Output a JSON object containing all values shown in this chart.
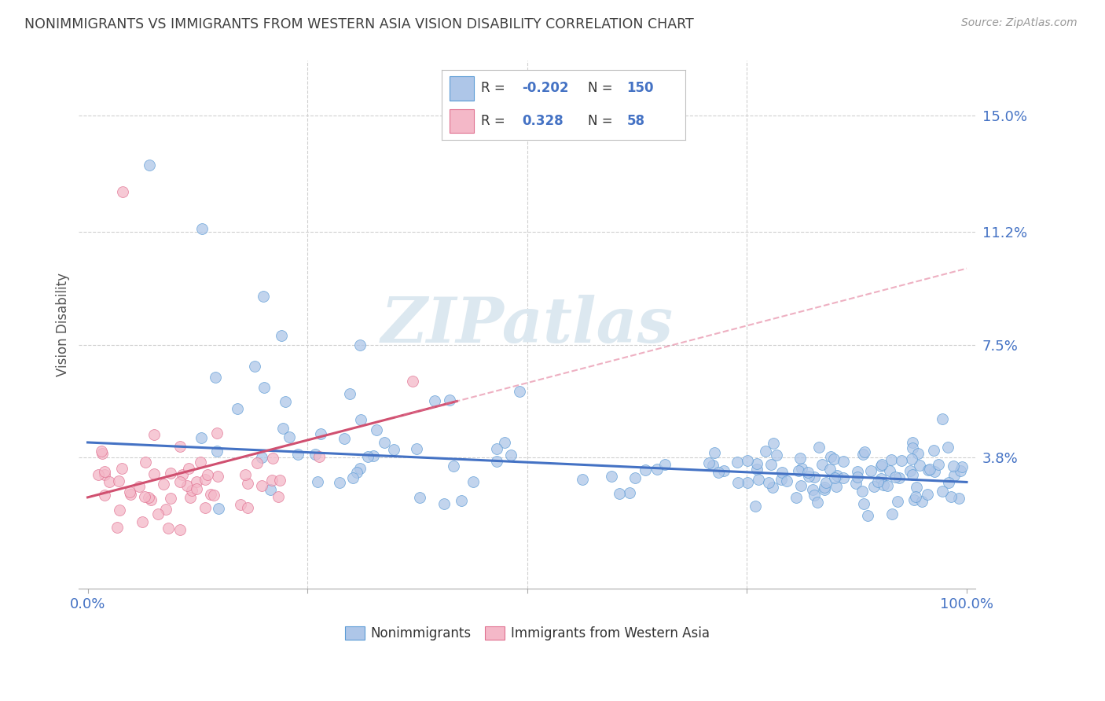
{
  "title": "NONIMMIGRANTS VS IMMIGRANTS FROM WESTERN ASIA VISION DISABILITY CORRELATION CHART",
  "source": "Source: ZipAtlas.com",
  "ylabel": "Vision Disability",
  "y_ticks": [
    0.038,
    0.075,
    0.112,
    0.15
  ],
  "y_tick_labels": [
    "3.8%",
    "7.5%",
    "11.2%",
    "15.0%"
  ],
  "nonimm_R": -0.202,
  "nonimm_N": 150,
  "imm_R": 0.328,
  "imm_N": 58,
  "nonimm_color": "#aec6e8",
  "nonimm_edge_color": "#5b9bd5",
  "nonimm_line_color": "#4472c4",
  "imm_color": "#f4b8c8",
  "imm_edge_color": "#e07090",
  "imm_line_color": "#d05070",
  "watermark_color": "#dce8f0",
  "background_color": "#ffffff",
  "grid_color": "#d0d0d0",
  "title_color": "#404040",
  "axis_label_color": "#4472c4",
  "legend_R_color": "#4472c4",
  "ylim": [
    -0.005,
    0.168
  ],
  "xlim": [
    -0.01,
    1.01
  ]
}
